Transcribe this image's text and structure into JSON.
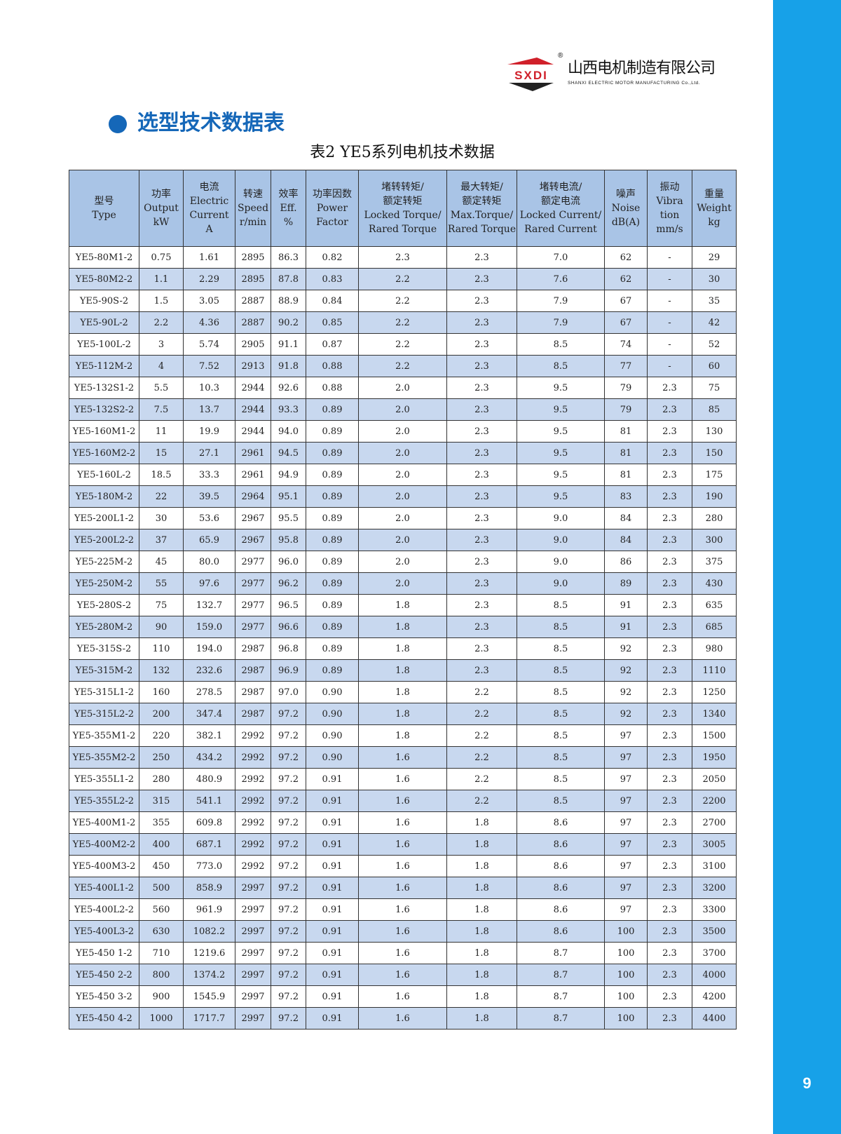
{
  "brand": {
    "logo_text": "SXDI",
    "name_cn": "山西电机制造有限公司",
    "name_en": "SHANXI ELECTRIC MOTOR MANUFACTURING Co.,Ltd.",
    "registered": "®"
  },
  "section_title": "选型技术数据表",
  "table_caption": "表2 YE5系列电机技术数据",
  "page_number": "9",
  "colors": {
    "accent": "#1567b8",
    "sidebar": "#17a1e8",
    "header_bg": "#a9c4e6",
    "alt_row": "#c8d8ef"
  },
  "headers": [
    [
      "型号",
      "Type"
    ],
    [
      "功率",
      "Output",
      "kW"
    ],
    [
      "电流",
      "Electric",
      "Current",
      "A"
    ],
    [
      "转速",
      "Speed",
      "r/min"
    ],
    [
      "效率",
      "Eff.",
      "%"
    ],
    [
      "功率因数",
      "Power",
      "Factor"
    ],
    [
      "堵转转矩/",
      "额定转矩",
      "Locked Torque/",
      "Rared Torque"
    ],
    [
      "最大转矩/",
      "额定转矩",
      "Max.Torque/",
      "Rared Torque"
    ],
    [
      "堵转电流/",
      "额定电流",
      "Locked Current/",
      "Rared Current"
    ],
    [
      "噪声",
      "Noise",
      "dB(A)"
    ],
    [
      "振动",
      "Vibra",
      "tion",
      "mm/s"
    ],
    [
      "重量",
      "Weight",
      "kg"
    ]
  ],
  "rows": [
    [
      "YE5-80M1-2",
      "0.75",
      "1.61",
      "2895",
      "86.3",
      "0.82",
      "2.3",
      "2.3",
      "7.0",
      "62",
      "-",
      "29"
    ],
    [
      "YE5-80M2-2",
      "1.1",
      "2.29",
      "2895",
      "87.8",
      "0.83",
      "2.2",
      "2.3",
      "7.6",
      "62",
      "-",
      "30"
    ],
    [
      "YE5-90S-2",
      "1.5",
      "3.05",
      "2887",
      "88.9",
      "0.84",
      "2.2",
      "2.3",
      "7.9",
      "67",
      "-",
      "35"
    ],
    [
      "YE5-90L-2",
      "2.2",
      "4.36",
      "2887",
      "90.2",
      "0.85",
      "2.2",
      "2.3",
      "7.9",
      "67",
      "-",
      "42"
    ],
    [
      "YE5-100L-2",
      "3",
      "5.74",
      "2905",
      "91.1",
      "0.87",
      "2.2",
      "2.3",
      "8.5",
      "74",
      "-",
      "52"
    ],
    [
      "YE5-112M-2",
      "4",
      "7.52",
      "2913",
      "91.8",
      "0.88",
      "2.2",
      "2.3",
      "8.5",
      "77",
      "-",
      "60"
    ],
    [
      "YE5-132S1-2",
      "5.5",
      "10.3",
      "2944",
      "92.6",
      "0.88",
      "2.0",
      "2.3",
      "9.5",
      "79",
      "2.3",
      "75"
    ],
    [
      "YE5-132S2-2",
      "7.5",
      "13.7",
      "2944",
      "93.3",
      "0.89",
      "2.0",
      "2.3",
      "9.5",
      "79",
      "2.3",
      "85"
    ],
    [
      "YE5-160M1-2",
      "11",
      "19.9",
      "2944",
      "94.0",
      "0.89",
      "2.0",
      "2.3",
      "9.5",
      "81",
      "2.3",
      "130"
    ],
    [
      "YE5-160M2-2",
      "15",
      "27.1",
      "2961",
      "94.5",
      "0.89",
      "2.0",
      "2.3",
      "9.5",
      "81",
      "2.3",
      "150"
    ],
    [
      "YE5-160L-2",
      "18.5",
      "33.3",
      "2961",
      "94.9",
      "0.89",
      "2.0",
      "2.3",
      "9.5",
      "81",
      "2.3",
      "175"
    ],
    [
      "YE5-180M-2",
      "22",
      "39.5",
      "2964",
      "95.1",
      "0.89",
      "2.0",
      "2.3",
      "9.5",
      "83",
      "2.3",
      "190"
    ],
    [
      "YE5-200L1-2",
      "30",
      "53.6",
      "2967",
      "95.5",
      "0.89",
      "2.0",
      "2.3",
      "9.0",
      "84",
      "2.3",
      "280"
    ],
    [
      "YE5-200L2-2",
      "37",
      "65.9",
      "2967",
      "95.8",
      "0.89",
      "2.0",
      "2.3",
      "9.0",
      "84",
      "2.3",
      "300"
    ],
    [
      "YE5-225M-2",
      "45",
      "80.0",
      "2977",
      "96.0",
      "0.89",
      "2.0",
      "2.3",
      "9.0",
      "86",
      "2.3",
      "375"
    ],
    [
      "YE5-250M-2",
      "55",
      "97.6",
      "2977",
      "96.2",
      "0.89",
      "2.0",
      "2.3",
      "9.0",
      "89",
      "2.3",
      "430"
    ],
    [
      "YE5-280S-2",
      "75",
      "132.7",
      "2977",
      "96.5",
      "0.89",
      "1.8",
      "2.3",
      "8.5",
      "91",
      "2.3",
      "635"
    ],
    [
      "YE5-280M-2",
      "90",
      "159.0",
      "2977",
      "96.6",
      "0.89",
      "1.8",
      "2.3",
      "8.5",
      "91",
      "2.3",
      "685"
    ],
    [
      "YE5-315S-2",
      "110",
      "194.0",
      "2987",
      "96.8",
      "0.89",
      "1.8",
      "2.3",
      "8.5",
      "92",
      "2.3",
      "980"
    ],
    [
      "YE5-315M-2",
      "132",
      "232.6",
      "2987",
      "96.9",
      "0.89",
      "1.8",
      "2.3",
      "8.5",
      "92",
      "2.3",
      "1110"
    ],
    [
      "YE5-315L1-2",
      "160",
      "278.5",
      "2987",
      "97.0",
      "0.90",
      "1.8",
      "2.2",
      "8.5",
      "92",
      "2.3",
      "1250"
    ],
    [
      "YE5-315L2-2",
      "200",
      "347.4",
      "2987",
      "97.2",
      "0.90",
      "1.8",
      "2.2",
      "8.5",
      "92",
      "2.3",
      "1340"
    ],
    [
      "YE5-355M1-2",
      "220",
      "382.1",
      "2992",
      "97.2",
      "0.90",
      "1.8",
      "2.2",
      "8.5",
      "97",
      "2.3",
      "1500"
    ],
    [
      "YE5-355M2-2",
      "250",
      "434.2",
      "2992",
      "97.2",
      "0.90",
      "1.6",
      "2.2",
      "8.5",
      "97",
      "2.3",
      "1950"
    ],
    [
      "YE5-355L1-2",
      "280",
      "480.9",
      "2992",
      "97.2",
      "0.91",
      "1.6",
      "2.2",
      "8.5",
      "97",
      "2.3",
      "2050"
    ],
    [
      "YE5-355L2-2",
      "315",
      "541.1",
      "2992",
      "97.2",
      "0.91",
      "1.6",
      "2.2",
      "8.5",
      "97",
      "2.3",
      "2200"
    ],
    [
      "YE5-400M1-2",
      "355",
      "609.8",
      "2992",
      "97.2",
      "0.91",
      "1.6",
      "1.8",
      "8.6",
      "97",
      "2.3",
      "2700"
    ],
    [
      "YE5-400M2-2",
      "400",
      "687.1",
      "2992",
      "97.2",
      "0.91",
      "1.6",
      "1.8",
      "8.6",
      "97",
      "2.3",
      "3005"
    ],
    [
      "YE5-400M3-2",
      "450",
      "773.0",
      "2992",
      "97.2",
      "0.91",
      "1.6",
      "1.8",
      "8.6",
      "97",
      "2.3",
      "3100"
    ],
    [
      "YE5-400L1-2",
      "500",
      "858.9",
      "2997",
      "97.2",
      "0.91",
      "1.6",
      "1.8",
      "8.6",
      "97",
      "2.3",
      "3200"
    ],
    [
      "YE5-400L2-2",
      "560",
      "961.9",
      "2997",
      "97.2",
      "0.91",
      "1.6",
      "1.8",
      "8.6",
      "97",
      "2.3",
      "3300"
    ],
    [
      "YE5-400L3-2",
      "630",
      "1082.2",
      "2997",
      "97.2",
      "0.91",
      "1.6",
      "1.8",
      "8.6",
      "100",
      "2.3",
      "3500"
    ],
    [
      "YE5-450 1-2",
      "710",
      "1219.6",
      "2997",
      "97.2",
      "0.91",
      "1.6",
      "1.8",
      "8.7",
      "100",
      "2.3",
      "3700"
    ],
    [
      "YE5-450 2-2",
      "800",
      "1374.2",
      "2997",
      "97.2",
      "0.91",
      "1.6",
      "1.8",
      "8.7",
      "100",
      "2.3",
      "4000"
    ],
    [
      "YE5-450 3-2",
      "900",
      "1545.9",
      "2997",
      "97.2",
      "0.91",
      "1.6",
      "1.8",
      "8.7",
      "100",
      "2.3",
      "4200"
    ],
    [
      "YE5-450 4-2",
      "1000",
      "1717.7",
      "2997",
      "97.2",
      "0.91",
      "1.6",
      "1.8",
      "8.7",
      "100",
      "2.3",
      "4400"
    ]
  ]
}
